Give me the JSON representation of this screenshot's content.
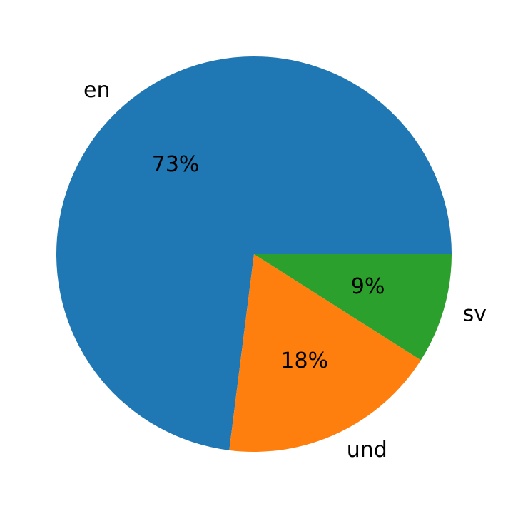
{
  "chart_data": {
    "type": "pie",
    "categories": [
      "en",
      "und",
      "sv"
    ],
    "values": [
      73,
      18,
      9
    ],
    "value_labels": [
      "73%",
      "18%",
      "9%"
    ],
    "colors": [
      "#1f77b4",
      "#ff7f0e",
      "#2ca02c"
    ],
    "start_angle": 0,
    "counterclockwise": true
  }
}
